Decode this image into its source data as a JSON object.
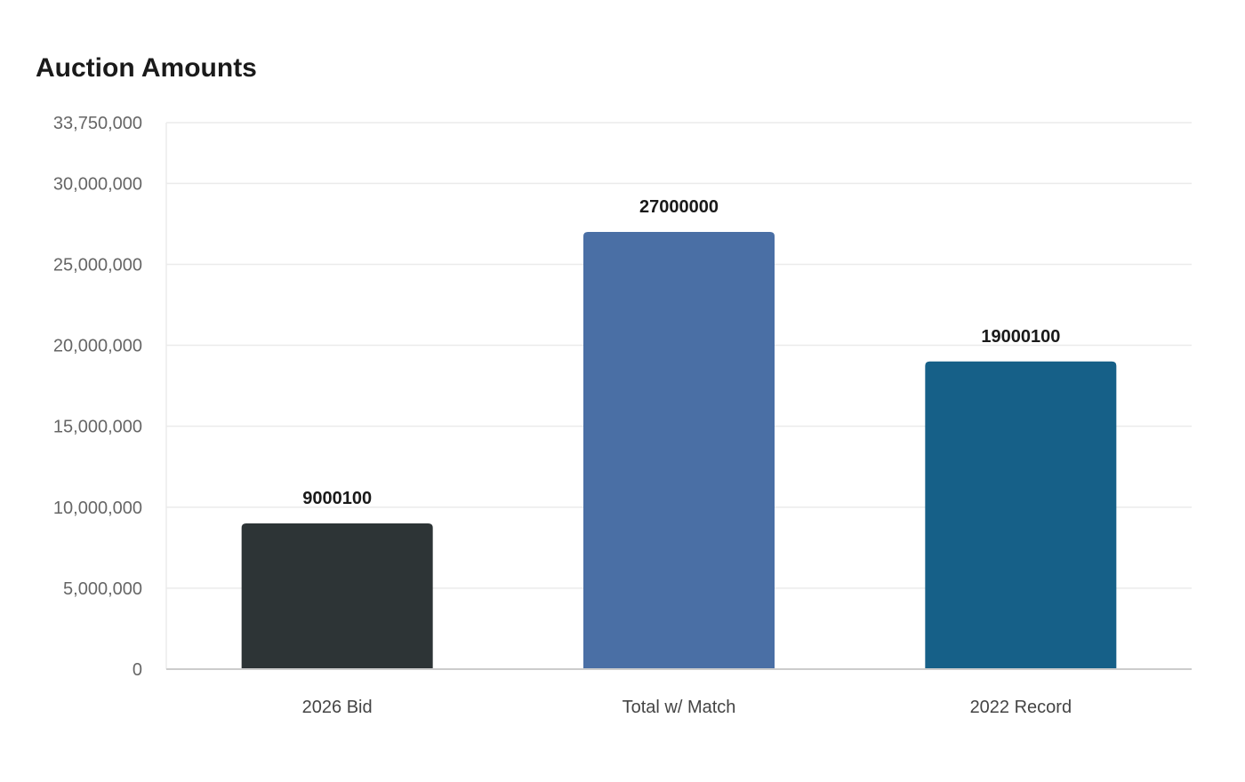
{
  "chart_data": {
    "type": "bar",
    "title": "Auction Amounts",
    "xlabel": "",
    "ylabel": "",
    "categories": [
      "2026 Bid",
      "Total w/ Match",
      "2022 Record"
    ],
    "values": [
      9000100,
      27000000,
      19000100
    ],
    "value_labels": [
      "9000100",
      "27000000",
      "19000100"
    ],
    "colors": [
      "#2d3436",
      "#4a6fa5",
      "#166088"
    ],
    "ylim": [
      0,
      33750000
    ],
    "yticks": [
      0,
      5000000,
      10000000,
      15000000,
      20000000,
      25000000,
      30000000,
      33750000
    ],
    "ytick_labels": [
      "0",
      "5,000,000",
      "10,000,000",
      "15,000,000",
      "20,000,000",
      "25,000,000",
      "30,000,000",
      "33,750,000"
    ],
    "grid": true,
    "gridline_color": "#ebebeb",
    "axis_color": "#cccccc"
  }
}
